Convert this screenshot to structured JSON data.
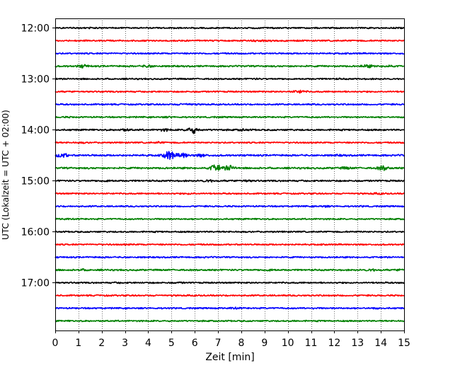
{
  "chart_data": {
    "type": "line",
    "title": "",
    "xlabel": "Zeit  [min]",
    "ylabel": "UTC (Lokalzeit = UTC + 02:00)",
    "xlim": [
      0,
      15
    ],
    "x_ticks": [
      "0",
      "1",
      "2",
      "3",
      "4",
      "5",
      "6",
      "7",
      "8",
      "9",
      "10",
      "11",
      "12",
      "13",
      "14",
      "15"
    ],
    "y_ticks": [
      "12:00",
      "13:00",
      "14:00",
      "15:00",
      "16:00",
      "17:00"
    ],
    "grid": "vertical dotted at each minute",
    "trace_interval_minutes": 15,
    "trace_color_cycle": [
      "#000000",
      "#ff0000",
      "#0000ff",
      "#008000"
    ],
    "traces": [
      {
        "start": "12:00",
        "color": "#000000",
        "amplitude": 1.0,
        "bursts": [
          [
            1.4,
            1.2
          ],
          [
            8.1,
            1.0
          ],
          [
            14.4,
            1.0
          ]
        ]
      },
      {
        "start": "12:15",
        "color": "#ff0000",
        "amplitude": 1.0,
        "bursts": [
          [
            8.6,
            1.3
          ],
          [
            9.1,
            1.3
          ]
        ]
      },
      {
        "start": "12:30",
        "color": "#0000ff",
        "amplitude": 1.0,
        "bursts": [
          [
            1.2,
            1.0
          ],
          [
            6.0,
            1.0
          ],
          [
            12.6,
            1.0
          ]
        ]
      },
      {
        "start": "12:45",
        "color": "#008000",
        "amplitude": 1.1,
        "bursts": [
          [
            1.2,
            1.8
          ],
          [
            4.0,
            1.6
          ],
          [
            13.4,
            1.8
          ],
          [
            14.3,
            1.5
          ]
        ]
      },
      {
        "start": "13:00",
        "color": "#000000",
        "amplitude": 1.0,
        "bursts": [
          [
            8.6,
            1.1
          ],
          [
            12.2,
            1.1
          ]
        ]
      },
      {
        "start": "13:15",
        "color": "#ff0000",
        "amplitude": 1.0,
        "bursts": [
          [
            10.5,
            1.9
          ],
          [
            3.2,
            1.0
          ]
        ]
      },
      {
        "start": "13:30",
        "color": "#0000ff",
        "amplitude": 1.0,
        "bursts": [
          [
            5.5,
            1.3
          ],
          [
            5.8,
            1.3
          ],
          [
            8.8,
            1.1
          ]
        ]
      },
      {
        "start": "13:45",
        "color": "#008000",
        "amplitude": 1.0,
        "bursts": [
          [
            0.5,
            1.1
          ],
          [
            4.9,
            1.2
          ],
          [
            7.1,
            1.1
          ]
        ]
      },
      {
        "start": "14:00",
        "color": "#000000",
        "amplitude": 1.1,
        "bursts": [
          [
            3.0,
            1.6
          ],
          [
            4.7,
            1.5
          ],
          [
            5.9,
            3.2
          ],
          [
            8.1,
            1.4
          ]
        ]
      },
      {
        "start": "14:15",
        "color": "#ff0000",
        "amplitude": 1.0,
        "bursts": [
          [
            1.2,
            1.2
          ],
          [
            4.5,
            1.3
          ]
        ]
      },
      {
        "start": "14:30",
        "color": "#0000ff",
        "amplitude": 1.2,
        "bursts": [
          [
            0.3,
            2.4
          ],
          [
            4.9,
            4.2
          ],
          [
            5.5,
            2.6
          ],
          [
            6.3,
            1.8
          ],
          [
            12.2,
            1.2
          ]
        ]
      },
      {
        "start": "14:45",
        "color": "#008000",
        "amplitude": 1.2,
        "bursts": [
          [
            6.9,
            3.4
          ],
          [
            7.5,
            2.6
          ],
          [
            12.5,
            1.5
          ],
          [
            14.1,
            2.3
          ]
        ]
      },
      {
        "start": "15:00",
        "color": "#000000",
        "amplitude": 1.1,
        "bursts": [
          [
            2.2,
            1.4
          ],
          [
            6.6,
            1.6
          ],
          [
            8.2,
            1.5
          ]
        ]
      },
      {
        "start": "15:15",
        "color": "#ff0000",
        "amplitude": 1.0,
        "bursts": [
          [
            5.8,
            1.3
          ],
          [
            13.9,
            1.4
          ]
        ]
      },
      {
        "start": "15:30",
        "color": "#0000ff",
        "amplitude": 1.0,
        "bursts": [
          [
            11.6,
            1.3
          ],
          [
            13.2,
            1.1
          ]
        ]
      },
      {
        "start": "15:45",
        "color": "#008000",
        "amplitude": 1.0,
        "bursts": [
          [
            0.4,
            1.2
          ],
          [
            7.1,
            1.1
          ]
        ]
      },
      {
        "start": "16:00",
        "color": "#000000",
        "amplitude": 1.0,
        "bursts": [
          [
            3.2,
            1.0
          ],
          [
            11.4,
            1.0
          ]
        ]
      },
      {
        "start": "16:15",
        "color": "#ff0000",
        "amplitude": 1.0,
        "bursts": [
          [
            3.1,
            1.1
          ],
          [
            6.6,
            1.0
          ]
        ]
      },
      {
        "start": "16:30",
        "color": "#0000ff",
        "amplitude": 1.0,
        "bursts": [
          [
            2.0,
            1.1
          ],
          [
            6.5,
            1.1
          ],
          [
            14.1,
            1.1
          ]
        ]
      },
      {
        "start": "16:45",
        "color": "#008000",
        "amplitude": 1.1,
        "bursts": [
          [
            1.2,
            1.3
          ],
          [
            9.2,
            1.5
          ],
          [
            13.6,
            1.5
          ],
          [
            14.9,
            1.4
          ]
        ]
      },
      {
        "start": "17:00",
        "color": "#000000",
        "amplitude": 1.0,
        "bursts": [
          [
            2.7,
            1.1
          ],
          [
            5.3,
            1.2
          ],
          [
            14.1,
            1.1
          ]
        ]
      },
      {
        "start": "17:15",
        "color": "#ff0000",
        "amplitude": 1.0,
        "bursts": [
          [
            2.1,
            1.1
          ],
          [
            5.9,
            1.1
          ]
        ]
      },
      {
        "start": "17:30",
        "color": "#0000ff",
        "amplitude": 1.0,
        "bursts": [
          [
            7.7,
            1.3
          ],
          [
            11.1,
            1.2
          ],
          [
            13.7,
            1.2
          ]
        ]
      },
      {
        "start": "17:45",
        "color": "#008000",
        "amplitude": 1.0,
        "bursts": [
          [
            4.0,
            1.0
          ],
          [
            10.2,
            1.1
          ]
        ]
      }
    ]
  }
}
